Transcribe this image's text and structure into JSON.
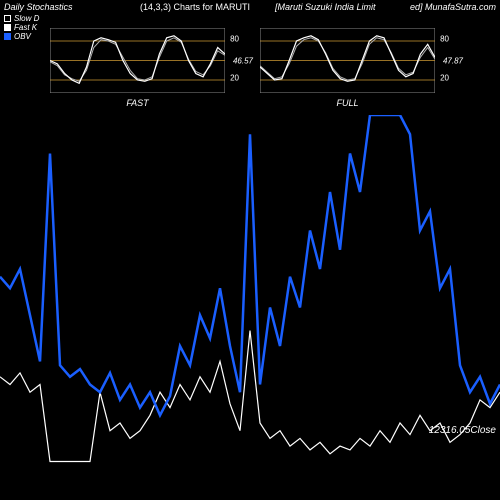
{
  "background_color": "#000000",
  "text_color": "#ffffff",
  "header": {
    "title": "Daily Stochastics",
    "params": "(14,3,3) Charts for MARUTI",
    "company": "[Maruti Suzuki India Limit",
    "source": "ed] MunafaSutra.com"
  },
  "legend": {
    "slow_d": {
      "label": "Slow D",
      "color": "#ffffff",
      "fill": "#000000"
    },
    "fast_k": {
      "label": "Fast K",
      "color": "#ffffff",
      "fill": "#ffffff"
    },
    "obv": {
      "label": "OBV",
      "color": "#1a5fff",
      "fill": "#1a5fff"
    }
  },
  "sub_charts": {
    "border_color": "#888888",
    "grid_color": "#cc9933",
    "grid_levels": [
      20,
      50,
      80
    ],
    "ytick_labels": [
      "20",
      "80"
    ],
    "fast": {
      "label": "FAST",
      "value_label": "46.57",
      "line1_color": "#ffffff",
      "line2_color": "#b0b0b0",
      "line1": [
        50,
        45,
        30,
        20,
        15,
        40,
        80,
        85,
        82,
        78,
        50,
        30,
        20,
        18,
        22,
        60,
        85,
        88,
        80,
        50,
        30,
        25,
        45,
        70,
        60
      ],
      "line2": [
        48,
        42,
        28,
        22,
        18,
        35,
        70,
        82,
        80,
        75,
        55,
        35,
        22,
        20,
        25,
        55,
        80,
        85,
        78,
        52,
        33,
        28,
        42,
        65,
        58
      ]
    },
    "full": {
      "label": "FULL",
      "value_label": "47.87",
      "line1_color": "#ffffff",
      "line2_color": "#b0b0b0",
      "line1": [
        40,
        30,
        20,
        22,
        50,
        80,
        85,
        88,
        82,
        60,
        35,
        22,
        18,
        20,
        50,
        80,
        88,
        85,
        60,
        35,
        25,
        30,
        60,
        75,
        55
      ],
      "line2": [
        42,
        32,
        22,
        25,
        45,
        72,
        82,
        85,
        80,
        62,
        38,
        25,
        20,
        22,
        45,
        75,
        85,
        82,
        62,
        38,
        28,
        32,
        55,
        70,
        52
      ]
    }
  },
  "main_chart": {
    "obv_color": "#1a5fff",
    "close_color": "#ffffff",
    "line_width_obv": 2.5,
    "line_width_close": 1.2,
    "close_value_label": "12316.05Close",
    "obv": [
      0.58,
      0.55,
      0.6,
      0.48,
      0.36,
      0.9,
      0.35,
      0.32,
      0.34,
      0.3,
      0.28,
      0.33,
      0.26,
      0.3,
      0.24,
      0.28,
      0.22,
      0.27,
      0.4,
      0.35,
      0.48,
      0.42,
      0.55,
      0.4,
      0.28,
      0.95,
      0.3,
      0.5,
      0.4,
      0.58,
      0.5,
      0.7,
      0.6,
      0.8,
      0.65,
      0.9,
      0.8,
      1.0,
      1.0,
      1.0,
      1.0,
      0.95,
      0.7,
      0.75,
      0.55,
      0.6,
      0.35,
      0.28,
      0.32,
      0.25,
      0.3
    ],
    "close": [
      0.32,
      0.3,
      0.33,
      0.28,
      0.3,
      0.1,
      0.1,
      0.1,
      0.1,
      0.1,
      0.28,
      0.18,
      0.2,
      0.16,
      0.18,
      0.22,
      0.28,
      0.24,
      0.3,
      0.26,
      0.32,
      0.28,
      0.36,
      0.25,
      0.18,
      0.44,
      0.2,
      0.16,
      0.18,
      0.14,
      0.16,
      0.13,
      0.15,
      0.12,
      0.14,
      0.13,
      0.16,
      0.14,
      0.18,
      0.15,
      0.2,
      0.17,
      0.22,
      0.18,
      0.2,
      0.15,
      0.17,
      0.2,
      0.26,
      0.24,
      0.28
    ]
  }
}
